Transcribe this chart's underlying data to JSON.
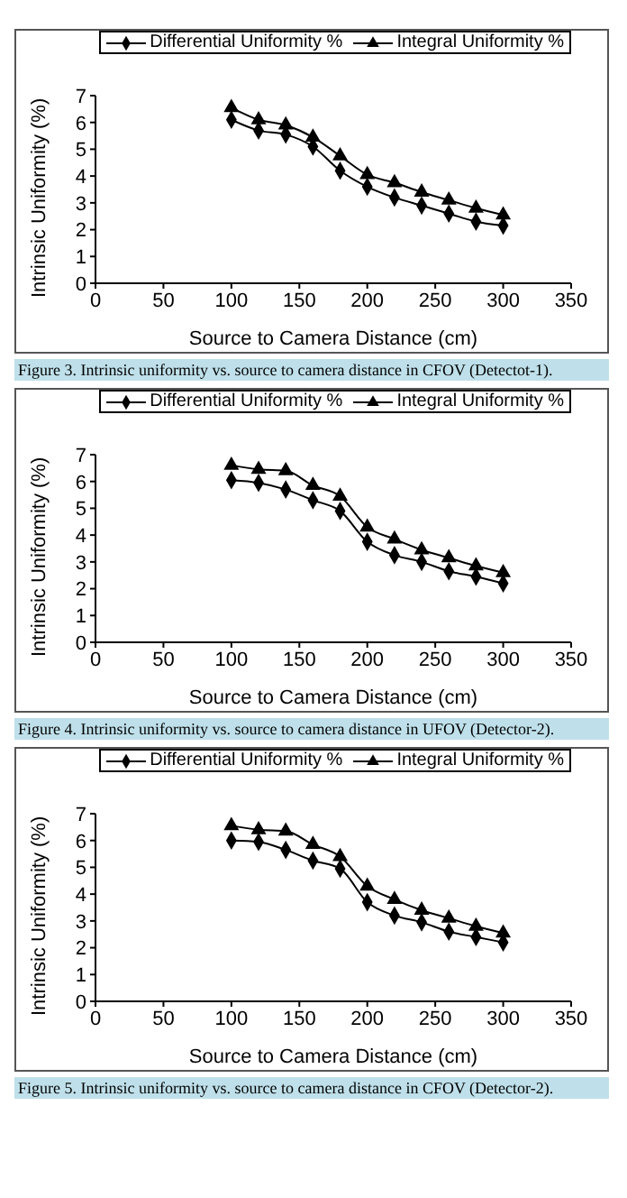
{
  "chart_data": [
    {
      "type": "line",
      "x": [
        100,
        120,
        140,
        160,
        180,
        200,
        220,
        240,
        260,
        280,
        300
      ],
      "xlabel": "Source to Camera Distance (cm)",
      "ylabel": "Intrinsic Uniformity (%)",
      "xlim": [
        0,
        350
      ],
      "xticks": [
        0,
        50,
        100,
        150,
        200,
        250,
        300,
        350
      ],
      "ylim": [
        0,
        7
      ],
      "yticks": [
        0,
        1,
        2,
        3,
        4,
        5,
        6,
        7
      ],
      "grid": false,
      "legend": "top right",
      "annotations": [
        "Figure 3. Intrinsic uniformity vs. source to camera distance in CFOV (Detectot-1)."
      ],
      "series": [
        {
          "name": "Differential Uniformity %",
          "color": "#000000",
          "marker": "diamond",
          "values": [
            6.1,
            5.7,
            5.55,
            5.1,
            4.2,
            3.6,
            3.2,
            2.9,
            2.6,
            2.3,
            2.15
          ]
        },
        {
          "name": "Integral Uniformity %",
          "color": "#000000",
          "marker": "triangle",
          "values": [
            6.55,
            6.1,
            5.9,
            5.45,
            4.75,
            4.05,
            3.75,
            3.4,
            3.1,
            2.8,
            2.55
          ]
        }
      ]
    },
    {
      "type": "line",
      "x": [
        100,
        120,
        140,
        160,
        180,
        200,
        220,
        240,
        260,
        280,
        300
      ],
      "xlabel": "Source to Camera Distance (cm)",
      "ylabel": "Intrinsic Uniformity (%)",
      "xlim": [
        0,
        350
      ],
      "xticks": [
        0,
        50,
        100,
        150,
        200,
        250,
        300,
        350
      ],
      "ylim": [
        0,
        7
      ],
      "yticks": [
        0,
        1,
        2,
        3,
        4,
        5,
        6,
        7
      ],
      "grid": false,
      "legend": "top right",
      "annotations": [
        "Figure 4. Intrinsic uniformity vs. source to camera distance in UFOV (Detector-2)."
      ],
      "series": [
        {
          "name": "Differential Uniformity %",
          "color": "#000000",
          "marker": "diamond",
          "values": [
            6.05,
            5.95,
            5.7,
            5.3,
            4.9,
            3.75,
            3.25,
            3.0,
            2.65,
            2.45,
            2.2
          ]
        },
        {
          "name": "Integral Uniformity %",
          "color": "#000000",
          "marker": "triangle",
          "values": [
            6.6,
            6.45,
            6.4,
            5.85,
            5.45,
            4.3,
            3.85,
            3.45,
            3.15,
            2.85,
            2.6
          ]
        }
      ]
    },
    {
      "type": "line",
      "x": [
        100,
        120,
        140,
        160,
        180,
        200,
        220,
        240,
        260,
        280,
        300
      ],
      "xlabel": "Source to Camera Distance (cm)",
      "ylabel": "Intrinsic Uniformity (%)",
      "xlim": [
        0,
        350
      ],
      "xticks": [
        0,
        50,
        100,
        150,
        200,
        250,
        300,
        350
      ],
      "ylim": [
        0,
        7
      ],
      "yticks": [
        0,
        1,
        2,
        3,
        4,
        5,
        6,
        7
      ],
      "grid": false,
      "legend": "top right",
      "annotations": [
        "Figure 5. Intrinsic uniformity vs. source to camera distance in CFOV (Detector-2)."
      ],
      "series": [
        {
          "name": "Differential Uniformity %",
          "color": "#000000",
          "marker": "diamond",
          "values": [
            6.0,
            5.95,
            5.65,
            5.25,
            4.95,
            3.7,
            3.2,
            2.95,
            2.6,
            2.4,
            2.2
          ]
        },
        {
          "name": "Integral Uniformity %",
          "color": "#000000",
          "marker": "triangle",
          "values": [
            6.55,
            6.4,
            6.35,
            5.85,
            5.4,
            4.3,
            3.8,
            3.4,
            3.1,
            2.8,
            2.55
          ]
        }
      ]
    }
  ]
}
